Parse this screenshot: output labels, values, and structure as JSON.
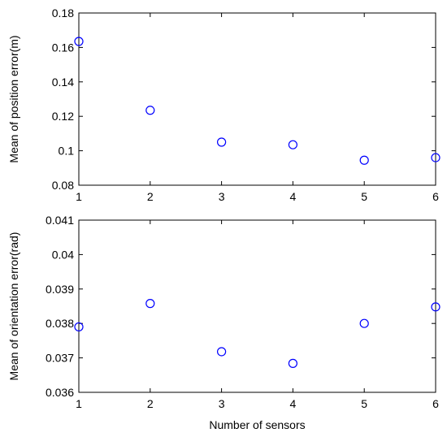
{
  "chart_data": [
    {
      "type": "scatter",
      "title": "",
      "xlabel": "",
      "ylabel": "Mean of position error(m)",
      "xlim": [
        1,
        6
      ],
      "ylim": [
        0.08,
        0.18
      ],
      "x_ticks": [
        "1",
        "2",
        "3",
        "4",
        "5",
        "6"
      ],
      "y_ticks": [
        "0.08",
        "0.1",
        "0.12",
        "0.14",
        "0.16",
        "0.18"
      ],
      "x": [
        1,
        2,
        3,
        4,
        5,
        6
      ],
      "y": [
        0.1635,
        0.1235,
        0.105,
        0.1035,
        0.0945,
        0.096
      ],
      "marker": "circle",
      "marker_color": "#0000ff",
      "grid": false
    },
    {
      "type": "scatter",
      "title": "",
      "xlabel": "Number of sensors",
      "ylabel": "Mean of orientation error(rad)",
      "xlim": [
        1,
        6
      ],
      "ylim": [
        0.036,
        0.041
      ],
      "x_ticks": [
        "1",
        "2",
        "3",
        "4",
        "5",
        "6"
      ],
      "y_ticks": [
        "0.036",
        "0.037",
        "0.038",
        "0.039",
        "0.04",
        "0.041"
      ],
      "x": [
        1,
        2,
        3,
        4,
        5,
        6
      ],
      "y": [
        0.0379,
        0.03858,
        0.03718,
        0.03684,
        0.038,
        0.03848
      ],
      "marker": "circle",
      "marker_color": "#0000ff",
      "grid": false
    }
  ]
}
